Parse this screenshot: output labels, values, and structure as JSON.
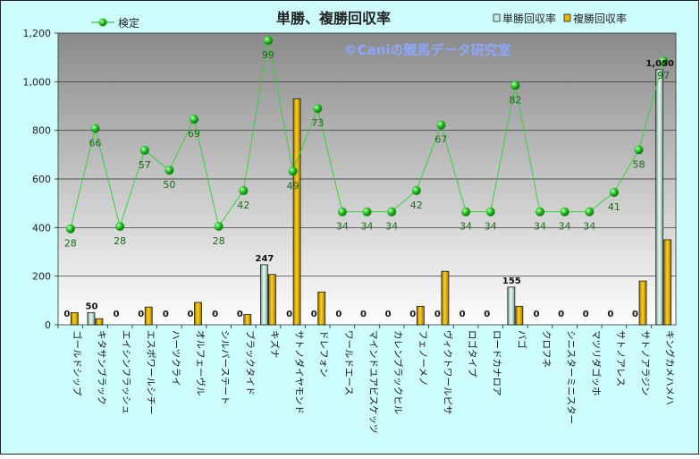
{
  "chart_data": {
    "type": "bar",
    "title": "単勝、複勝回収率",
    "watermark": "©Caniの競馬データ研究室",
    "ylim": [
      0,
      1200
    ],
    "yticks": [
      "0",
      "200",
      "400",
      "600",
      "800",
      "1,000",
      "1,200"
    ],
    "grid": true,
    "categories": [
      "ゴールドシップ",
      "キタサンブラック",
      "エイシンフラッシュ",
      "エスポワールシチー",
      "ハーツクライ",
      "オルフェーヴル",
      "シルバーステート",
      "ブラックタイド",
      "キズナ",
      "サトノダイヤモンド",
      "ドレフォン",
      "ワールドエース",
      "マインドユアビスケッツ",
      "カレンブラックヒル",
      "フェノーメノ",
      "ヴィクトワールピサ",
      "ロゴタイプ",
      "ロードカナロア",
      "バゴ",
      "クロフネ",
      "シニスターミニスター",
      "マツリダゴッホ",
      "サトノアレス",
      "サトノアラジン",
      "キングカメハメハ"
    ],
    "series": [
      {
        "name": "単勝回収率",
        "kind": "bar",
        "color": "#c8ebe3",
        "values": [
          0,
          50,
          0,
          0,
          0,
          0,
          0,
          0,
          247,
          0,
          0,
          0,
          0,
          0,
          0,
          0,
          0,
          0,
          155,
          0,
          0,
          0,
          0,
          0,
          1050
        ],
        "labels": [
          "0",
          "50",
          "0",
          "0",
          "0",
          "0",
          "0",
          "0",
          "247",
          "0",
          "0",
          "0",
          "0",
          "0",
          "0",
          "0",
          "0",
          "0",
          "155",
          "0",
          "0",
          "0",
          "0",
          "0",
          "1,050"
        ]
      },
      {
        "name": "複勝回収率",
        "kind": "bar",
        "color": "#e6b400",
        "values": [
          50,
          25,
          0,
          73,
          0,
          92,
          0,
          42,
          207,
          930,
          135,
          0,
          0,
          0,
          76,
          220,
          0,
          0,
          76,
          0,
          0,
          0,
          0,
          180,
          350
        ]
      },
      {
        "name": "検定",
        "kind": "line",
        "color": "#22b022",
        "values": [
          395,
          808,
          405,
          718,
          636,
          846,
          405,
          552,
          1170,
          632,
          890,
          465,
          465,
          465,
          552,
          822,
          465,
          465,
          985,
          465,
          465,
          465,
          545,
          720,
          1085
        ],
        "labels": [
          "28",
          "66",
          "28",
          "57",
          "50",
          "69",
          "28",
          "42",
          "99",
          "49",
          "73",
          "34",
          "34",
          "34",
          "42",
          "67",
          "34",
          "34",
          "82",
          "34",
          "34",
          "34",
          "41",
          "58",
          "97"
        ]
      }
    ],
    "legend": {
      "line": "top-left",
      "bars": "top-right"
    }
  }
}
